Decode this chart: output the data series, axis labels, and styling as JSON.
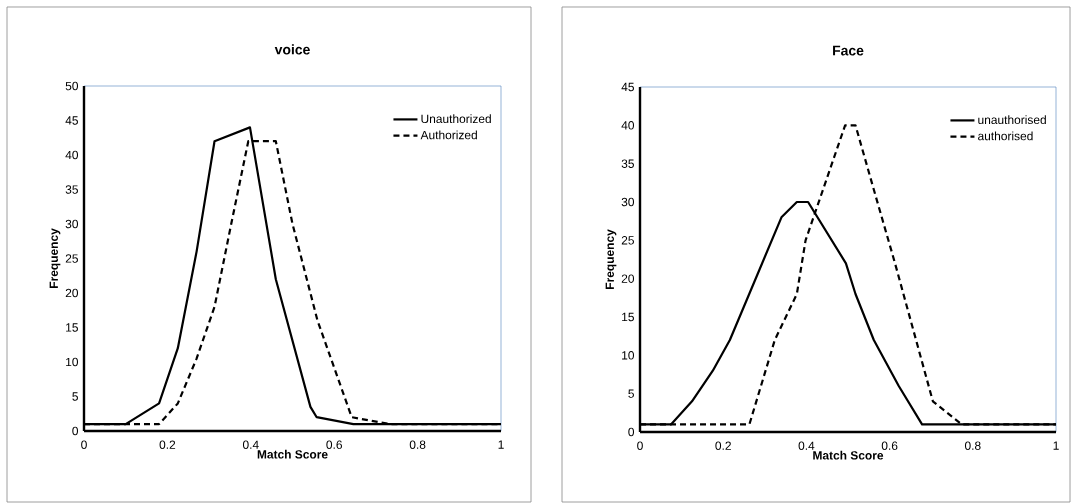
{
  "chart_data": [
    {
      "type": "line",
      "title": "voice",
      "xlabel": "Match Score",
      "ylabel": "Frequency",
      "xlim": [
        0,
        1
      ],
      "ylim": [
        0,
        50
      ],
      "xticks": [
        0,
        0.2,
        0.4,
        0.6,
        0.8,
        1
      ],
      "yticks": [
        0,
        5,
        10,
        15,
        20,
        25,
        30,
        35,
        40,
        45,
        50
      ],
      "legend": "top right",
      "marker": "none",
      "series": [
        {
          "name": "Unauthorized",
          "color": "#000000",
          "line_style": "solid",
          "x": [
            0,
            0.1,
            0.18,
            0.225,
            0.27,
            0.313,
            0.398,
            0.46,
            0.543,
            0.558,
            0.646,
            1
          ],
          "values": [
            1,
            1,
            4,
            12,
            26,
            42,
            44,
            22,
            3.5,
            2,
            1,
            1
          ]
        },
        {
          "name": "Authorized",
          "color": "#000000",
          "line_style": "dashed",
          "x": [
            0,
            0.18,
            0.225,
            0.27,
            0.313,
            0.353,
            0.394,
            0.46,
            0.5,
            0.56,
            0.642,
            0.733,
            1
          ],
          "values": [
            1,
            1,
            4,
            10.5,
            18,
            30,
            42,
            42,
            30,
            16,
            2,
            1,
            1
          ]
        }
      ]
    },
    {
      "type": "line",
      "title": "Face",
      "xlabel": "Match Score",
      "ylabel": "Frequency",
      "xlim": [
        0,
        1
      ],
      "ylim": [
        0,
        45
      ],
      "xticks": [
        0,
        0.2,
        0.4,
        0.6,
        0.8,
        1
      ],
      "yticks": [
        0,
        5,
        10,
        15,
        20,
        25,
        30,
        35,
        40,
        45
      ],
      "legend": "top right",
      "marker": "none",
      "series": [
        {
          "name": "unauthorised",
          "color": "#000000",
          "line_style": "solid",
          "x": [
            0,
            0.075,
            0.125,
            0.175,
            0.216,
            0.34,
            0.377,
            0.404,
            0.495,
            0.518,
            0.562,
            0.622,
            0.678,
            1
          ],
          "values": [
            1,
            1,
            4,
            8,
            12,
            28,
            30,
            30,
            22,
            18,
            12,
            6,
            1,
            1
          ]
        },
        {
          "name": "authorised",
          "color": "#000000",
          "line_style": "dashed",
          "x": [
            0,
            0.263,
            0.324,
            0.377,
            0.398,
            0.493,
            0.518,
            0.56,
            0.613,
            0.704,
            0.773,
            1
          ],
          "values": [
            1,
            1,
            12,
            18,
            25,
            40,
            40,
            32,
            22,
            4,
            1,
            1
          ]
        }
      ]
    }
  ]
}
